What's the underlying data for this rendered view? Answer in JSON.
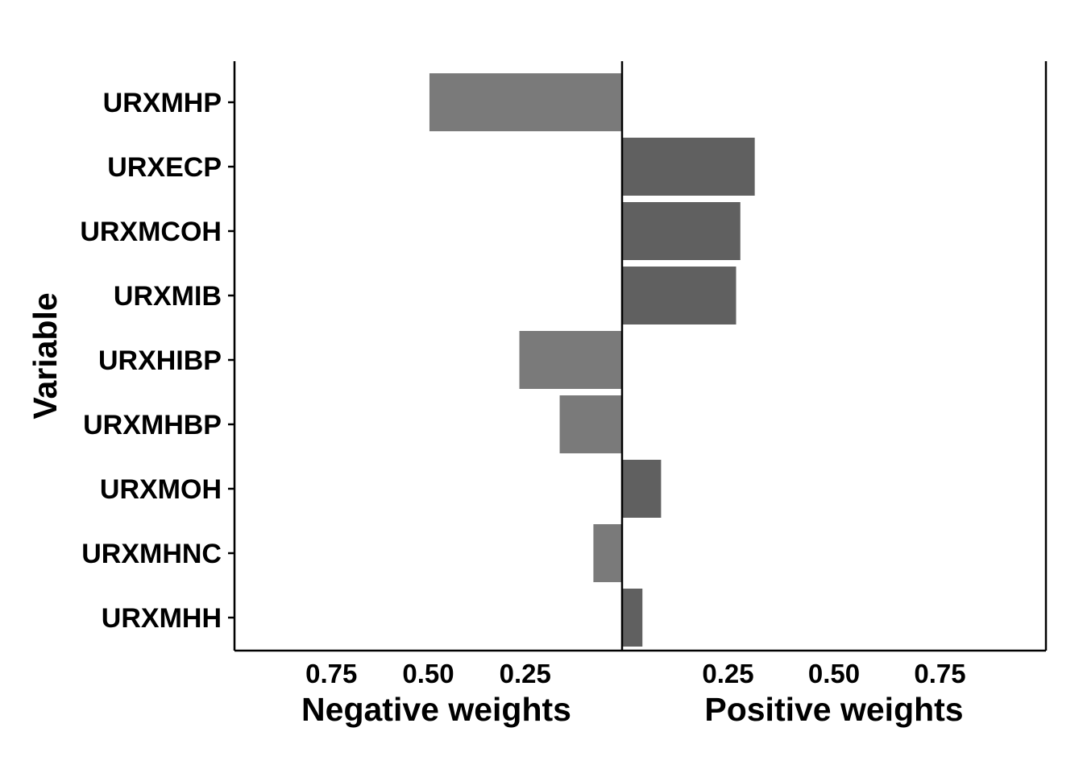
{
  "chart_data": {
    "type": "bar",
    "orientation": "horizontal",
    "ylabel": "Variable",
    "panels": [
      {
        "xlabel": "Negative weights",
        "direction": "reversed",
        "xlim": [
          0,
          1
        ],
        "ticks": [
          0.75,
          0.5,
          0.25
        ],
        "tick_labels": [
          "0.75",
          "0.50",
          "0.25"
        ]
      },
      {
        "xlabel": "Positive weights",
        "direction": "normal",
        "xlim": [
          0,
          1
        ],
        "ticks": [
          0.25,
          0.5,
          0.75
        ],
        "tick_labels": [
          "0.25",
          "0.50",
          "0.75"
        ]
      }
    ],
    "categories": [
      "URXMHP",
      "URXECP",
      "URXMCOH",
      "URXMIB",
      "URXHIBP",
      "URXMHBP",
      "URXMOH",
      "URXMHNC",
      "URXMHH"
    ],
    "bars": [
      {
        "variable": "URXMHP",
        "sign": "negative",
        "weight": 0.497
      },
      {
        "variable": "URXECP",
        "sign": "positive",
        "weight": 0.313
      },
      {
        "variable": "URXMCOH",
        "sign": "positive",
        "weight": 0.279
      },
      {
        "variable": "URXMIB",
        "sign": "positive",
        "weight": 0.269
      },
      {
        "variable": "URXHIBP",
        "sign": "negative",
        "weight": 0.265
      },
      {
        "variable": "URXMHBP",
        "sign": "negative",
        "weight": 0.161
      },
      {
        "variable": "URXMOH",
        "sign": "positive",
        "weight": 0.092
      },
      {
        "variable": "URXMHNC",
        "sign": "negative",
        "weight": 0.074
      },
      {
        "variable": "URXMHH",
        "sign": "positive",
        "weight": 0.048
      }
    ],
    "colors": {
      "negative": "#7a7a7a",
      "positive": "#606060"
    },
    "grid": false,
    "legend": "none"
  }
}
